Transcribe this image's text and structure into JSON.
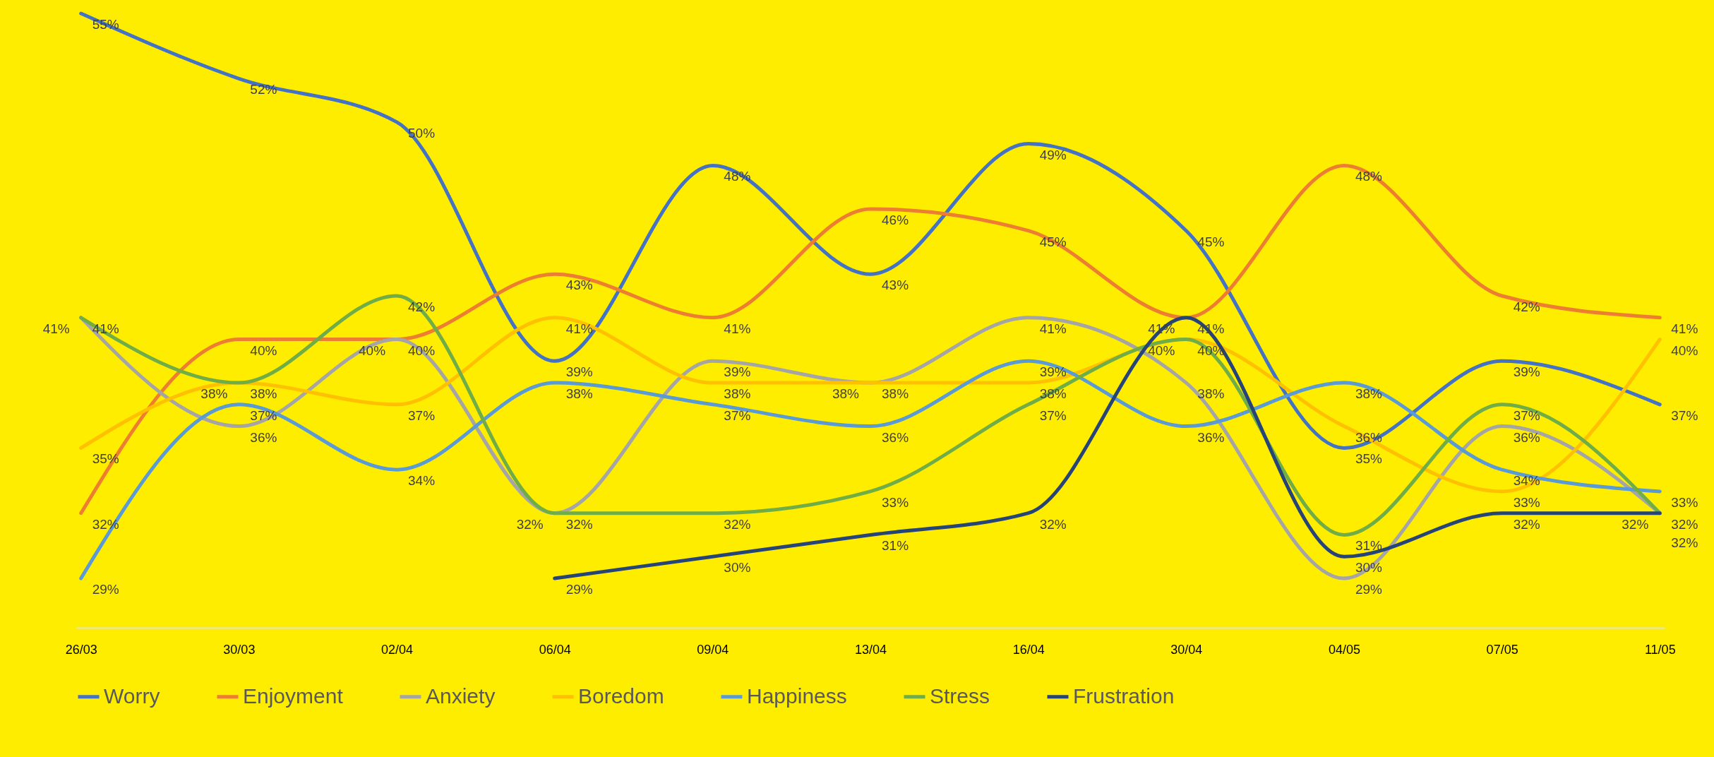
{
  "chart_data": {
    "type": "line",
    "categories": [
      "26/03",
      "30/03",
      "02/04",
      "06/04",
      "09/04",
      "13/04",
      "16/04",
      "30/04",
      "04/05",
      "07/05",
      "11/05"
    ],
    "series": [
      {
        "name": "Worry",
        "color": "#4472c4",
        "values": [
          55,
          52,
          50,
          39,
          48,
          43,
          49,
          45,
          35,
          39,
          37
        ],
        "value_labels": [
          "55%",
          "52%",
          "50%",
          "39%",
          "48%",
          "43%",
          "49%",
          "45%",
          "35%",
          "39%",
          "37%"
        ]
      },
      {
        "name": "Enjoyment",
        "color": "#ed7d31",
        "values": [
          32,
          40,
          40,
          43,
          41,
          46,
          45,
          41,
          48,
          42,
          41
        ],
        "value_labels": [
          "32%",
          "40%",
          "40%",
          "43%",
          "41%",
          "46%",
          "45%",
          "41%",
          "48%",
          "42%",
          "41%"
        ]
      },
      {
        "name": "Anxiety",
        "color": "#a5a5a5",
        "values": [
          41,
          36,
          40,
          32,
          39,
          38,
          41,
          38,
          29,
          36,
          32
        ],
        "value_labels": [
          "41%",
          "36%",
          "40%",
          "32%",
          "39%",
          "38%",
          "41%",
          "38%",
          "29%",
          "36%",
          "32%"
        ]
      },
      {
        "name": "Boredom",
        "color": "#ffc000",
        "values": [
          35,
          38,
          37,
          41,
          38,
          38,
          38,
          40,
          36,
          33,
          40
        ],
        "value_labels": [
          "35%",
          "38%",
          "37%",
          "41%",
          "38%",
          "38%",
          "38%",
          "40%",
          "36%",
          "33%",
          "40%"
        ]
      },
      {
        "name": "Happiness",
        "color": "#5b9bd5",
        "values": [
          29,
          37,
          34,
          38,
          37,
          36,
          39,
          36,
          38,
          34,
          33
        ],
        "value_labels": [
          "29%",
          "37%",
          "34%",
          "38%",
          "37%",
          "36%",
          "39%",
          "36%",
          "38%",
          "34%",
          "33%"
        ]
      },
      {
        "name": "Stress",
        "color": "#70ad47",
        "values": [
          41,
          38,
          42,
          32,
          32,
          33,
          37,
          40,
          31,
          37,
          32
        ],
        "value_labels": [
          "41%",
          "38%",
          "42%",
          "32%",
          "32%",
          "33%",
          "37%",
          "40%",
          "31%",
          "37%",
          "32%"
        ]
      },
      {
        "name": "Frustration",
        "color": "#264478",
        "values": [
          null,
          null,
          null,
          29,
          30,
          31,
          32,
          41,
          30,
          32,
          32
        ],
        "value_labels": [
          null,
          null,
          null,
          "29%",
          "30%",
          "31%",
          "32%",
          "41%",
          "30%",
          "32%",
          "32%"
        ]
      }
    ],
    "legend": "bottom",
    "tick_labels": "x",
    "marker": "none",
    "line_style": "solid"
  }
}
